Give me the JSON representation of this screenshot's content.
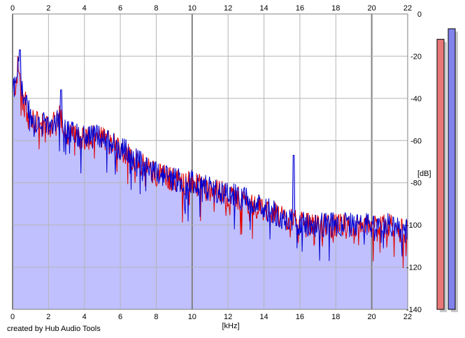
{
  "window": {
    "footer": "created by Hub Audio Tools"
  },
  "chart_data": {
    "type": "area",
    "x_unit_label": "[kHz]",
    "y_unit_label": "[dB]",
    "xlim": [
      0,
      22
    ],
    "ylim": [
      -140,
      0
    ],
    "x_ticks": [
      0,
      2,
      4,
      6,
      8,
      10,
      12,
      14,
      16,
      18,
      20,
      22
    ],
    "y_ticks": [
      0,
      -20,
      -40,
      -60,
      -80,
      -100,
      -120,
      -140
    ],
    "grid": true,
    "colors": {
      "fill": "#c0c0ff",
      "channel_a": "#e00000",
      "channel_b": "#0000d0",
      "grid": "#b4b4b4",
      "major_grid": "#808080",
      "meter_a": "#e87878",
      "meter_b": "#8282ec"
    },
    "envelope": [
      {
        "khz": 0.1,
        "db": -35
      },
      {
        "khz": 0.3,
        "db": -25
      },
      {
        "khz": 0.6,
        "db": -40
      },
      {
        "khz": 1.0,
        "db": -50
      },
      {
        "khz": 1.5,
        "db": -52
      },
      {
        "khz": 2.0,
        "db": -53
      },
      {
        "khz": 2.7,
        "db": -48
      },
      {
        "khz": 3.0,
        "db": -56
      },
      {
        "khz": 4.0,
        "db": -58
      },
      {
        "khz": 5.0,
        "db": -58
      },
      {
        "khz": 6.0,
        "db": -63
      },
      {
        "khz": 7.0,
        "db": -70
      },
      {
        "khz": 8.0,
        "db": -75
      },
      {
        "khz": 9.0,
        "db": -78
      },
      {
        "khz": 10.0,
        "db": -80
      },
      {
        "khz": 11.0,
        "db": -83
      },
      {
        "khz": 12.0,
        "db": -85
      },
      {
        "khz": 13.0,
        "db": -88
      },
      {
        "khz": 14.0,
        "db": -92
      },
      {
        "khz": 15.0,
        "db": -96
      },
      {
        "khz": 16.0,
        "db": -99
      },
      {
        "khz": 17.0,
        "db": -100
      },
      {
        "khz": 18.0,
        "db": -100
      },
      {
        "khz": 19.0,
        "db": -100
      },
      {
        "khz": 20.0,
        "db": -100
      },
      {
        "khz": 21.0,
        "db": -100
      },
      {
        "khz": 22.0,
        "db": -103
      }
    ],
    "peaks": [
      {
        "khz": 0.4,
        "db": -17
      },
      {
        "khz": 2.7,
        "db": -36
      },
      {
        "khz": 15.65,
        "db": -67
      }
    ],
    "meters": [
      {
        "channel": "left",
        "level_db": -12
      },
      {
        "channel": "right",
        "level_db": -7
      }
    ]
  }
}
